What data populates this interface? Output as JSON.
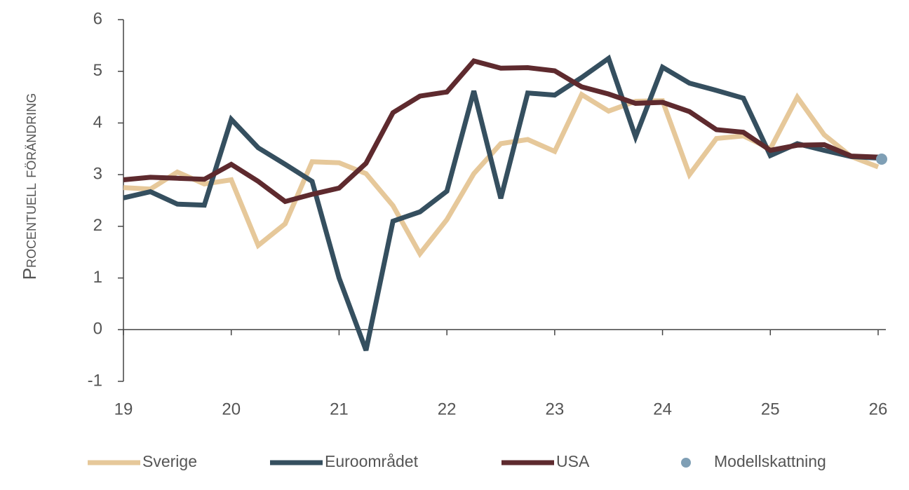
{
  "chart_data": {
    "type": "line",
    "y_label": "Procentuell förändring",
    "x": [
      19,
      19.25,
      19.5,
      19.75,
      20,
      20.25,
      20.5,
      20.75,
      21,
      21.25,
      21.5,
      21.75,
      22,
      22.25,
      22.5,
      22.75,
      23,
      23.25,
      23.5,
      23.75,
      24,
      24.25,
      24.5,
      24.75,
      25,
      25.25,
      25.5,
      25.75,
      26
    ],
    "series": [
      {
        "name": "Sverige",
        "color": "#e6c89a",
        "values": [
          2.75,
          2.72,
          3.05,
          2.82,
          2.9,
          1.63,
          2.05,
          3.25,
          3.23,
          3.02,
          2.4,
          1.47,
          2.13,
          3.02,
          3.6,
          3.68,
          3.45,
          4.55,
          4.23,
          4.42,
          4.43,
          3.0,
          3.7,
          3.75,
          3.5,
          4.5,
          3.77,
          3.35,
          3.15
        ]
      },
      {
        "name": "Euroområdet",
        "color": "#354f5f",
        "values": [
          2.55,
          2.67,
          2.43,
          2.41,
          4.07,
          3.52,
          3.2,
          2.87,
          1.0,
          -0.4,
          2.1,
          2.28,
          2.68,
          4.62,
          2.54,
          4.58,
          4.54,
          4.88,
          5.25,
          3.73,
          5.08,
          4.77,
          4.63,
          4.48,
          3.37,
          3.6,
          3.47,
          3.35,
          3.32
        ]
      },
      {
        "name": "USA",
        "color": "#5e2a2e",
        "values": [
          2.9,
          2.95,
          2.93,
          2.91,
          3.2,
          2.87,
          2.48,
          2.62,
          2.74,
          3.22,
          4.2,
          4.52,
          4.6,
          5.2,
          5.06,
          5.07,
          5.01,
          4.7,
          4.56,
          4.38,
          4.4,
          4.22,
          3.87,
          3.82,
          3.47,
          3.57,
          3.58,
          3.36,
          3.34
        ]
      },
      {
        "name": "Modellskattning",
        "color": "#7f9fb5",
        "marker": "dot",
        "x": [
          26
        ],
        "values": [
          3.3
        ]
      }
    ],
    "xlim": [
      19,
      26
    ],
    "xticks": [
      19,
      20,
      21,
      22,
      23,
      24,
      25,
      26
    ],
    "ylim": [
      -1,
      6
    ],
    "yticks": [
      -1,
      0,
      1,
      2,
      3,
      4,
      5,
      6
    ]
  }
}
